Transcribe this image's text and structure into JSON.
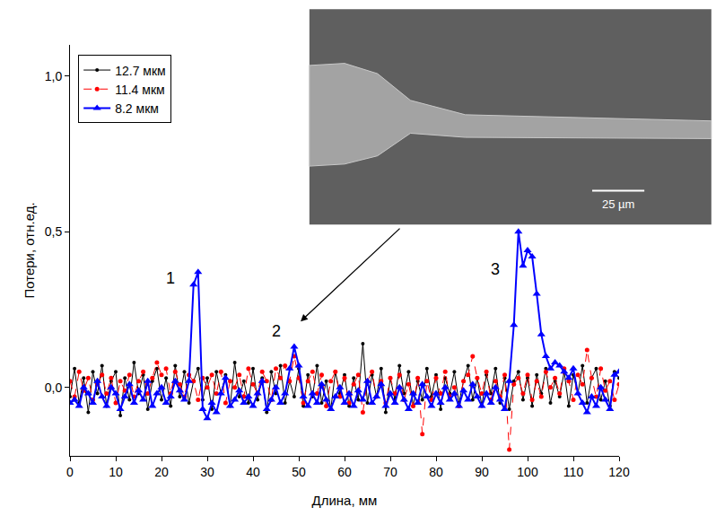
{
  "chart_data": {
    "type": "line",
    "x_label": "Длина, мм",
    "y_label": "Потери, отн.ед.",
    "xlim": [
      0,
      120
    ],
    "xticks": [
      0,
      10,
      20,
      30,
      40,
      50,
      60,
      70,
      80,
      90,
      100,
      110,
      120
    ],
    "ylim": [
      -0.22,
      1.1
    ],
    "yticks": [
      {
        "value": 0,
        "label": "0,0"
      },
      {
        "value": 0.5,
        "label": "0,5"
      },
      {
        "value": 1,
        "label": "1,0"
      }
    ],
    "grid": false,
    "legend": "top-left",
    "x": [
      0,
      1,
      2,
      3,
      4,
      5,
      6,
      7,
      8,
      9,
      10,
      11,
      12,
      13,
      14,
      15,
      16,
      17,
      18,
      19,
      20,
      21,
      22,
      23,
      24,
      25,
      26,
      27,
      28,
      29,
      30,
      31,
      32,
      33,
      34,
      35,
      36,
      37,
      38,
      39,
      40,
      41,
      42,
      43,
      44,
      45,
      46,
      47,
      48,
      49,
      50,
      51,
      52,
      53,
      54,
      55,
      56,
      57,
      58,
      59,
      60,
      61,
      62,
      63,
      64,
      65,
      66,
      67,
      68,
      69,
      70,
      71,
      72,
      73,
      74,
      75,
      76,
      77,
      78,
      79,
      80,
      81,
      82,
      83,
      84,
      85,
      86,
      87,
      88,
      89,
      90,
      91,
      92,
      93,
      94,
      95,
      96,
      97,
      98,
      99,
      100,
      101,
      102,
      103,
      104,
      105,
      106,
      107,
      108,
      109,
      110,
      111,
      112,
      113,
      114,
      115,
      116,
      117,
      118,
      119,
      120
    ],
    "series": [
      {
        "name": "12.7 мкм",
        "color": "#000000",
        "marker": "circle",
        "line_style": "solid",
        "values": [
          -0.03,
          0.06,
          -0.05,
          0.03,
          -0.08,
          0.05,
          -0.02,
          0.07,
          -0.06,
          0.02,
          0.05,
          -0.09,
          0.03,
          -0.04,
          0.08,
          -0.02,
          0.04,
          -0.07,
          0.02,
          0.06,
          -0.04,
          0.03,
          -0.06,
          0.07,
          -0.03,
          0.05,
          -0.05,
          0.02,
          0.06,
          -0.04,
          0.03,
          -0.07,
          0.05,
          -0.02,
          0.04,
          -0.06,
          0.08,
          -0.03,
          0.02,
          -0.05,
          0.06,
          -0.04,
          0.03,
          -0.08,
          0.05,
          -0.02,
          0.07,
          -0.05,
          0.02,
          -0.03,
          0.06,
          -0.06,
          0.04,
          -0.03,
          0.07,
          -0.05,
          0.02,
          -0.07,
          0.05,
          -0.02,
          0.04,
          -0.06,
          0.03,
          -0.04,
          0.14,
          -0.05,
          0.04,
          -0.03,
          0.06,
          -0.08,
          0.03,
          -0.04,
          0.07,
          -0.02,
          0.05,
          -0.06,
          0.02,
          -0.04,
          0.06,
          -0.03,
          0.04,
          -0.07,
          0.03,
          -0.02,
          0.05,
          -0.05,
          0.02,
          0.07,
          -0.04,
          0.03,
          -0.06,
          0.04,
          -0.02,
          0.06,
          -0.05,
          0.03,
          -0.07,
          0.02,
          0.05,
          -0.04,
          0.03,
          -0.06,
          0.04,
          -0.02,
          0.06,
          -0.05,
          0.02,
          -0.03,
          0.05,
          -0.06,
          0.04,
          -0.02,
          0.07,
          -0.05,
          0.03,
          0.06,
          -0.04,
          0.02,
          -0.06,
          0.05,
          0.03
        ]
      },
      {
        "name": "11.4 мкм",
        "color": "#ff0000",
        "marker": "circle",
        "line_style": "dash",
        "values": [
          0.02,
          -0.03,
          0.05,
          -0.01,
          0.03,
          -0.04,
          0.01,
          0.04,
          -0.02,
          0.03,
          -0.05,
          0.02,
          -0.01,
          0.04,
          -0.03,
          0.02,
          0.05,
          -0.02,
          0.03,
          0.08,
          0.04,
          0.06,
          -0.02,
          0.05,
          0.01,
          -0.03,
          0.04,
          0.02,
          -0.04,
          0.03,
          0.0,
          0.04,
          -0.02,
          0.05,
          -0.05,
          0.02,
          0.0,
          0.04,
          -0.03,
          0.06,
          0.01,
          -0.02,
          0.05,
          0.02,
          -0.04,
          0.06,
          0.03,
          0.07,
          0.02,
          0.1,
          0.03,
          -0.05,
          0.02,
          0.05,
          -0.02,
          0.04,
          -0.06,
          0.02,
          0.05,
          -0.03,
          0.03,
          -0.05,
          0.01,
          0.04,
          -0.08,
          0.02,
          0.05,
          -0.03,
          0.02,
          -0.05,
          0.03,
          -0.02,
          0.04,
          -0.04,
          0.01,
          -0.06,
          0.03,
          -0.15,
          0.02,
          -0.04,
          0.03,
          -0.02,
          0.05,
          -0.03,
          0.0,
          -0.06,
          0.02,
          0.04,
          0.1,
          0.03,
          -0.02,
          0.05,
          -0.04,
          0.02,
          -0.03,
          0.04,
          -0.2,
          0.01,
          0.03,
          -0.02,
          0.04,
          -0.04,
          0.02,
          -0.03,
          0.05,
          0.0,
          0.03,
          -0.02,
          0.06,
          0.02,
          -0.04,
          0.04,
          0.01,
          0.12,
          0.03,
          -0.03,
          0.06,
          -0.01,
          0.02,
          -0.04,
          0.01
        ]
      },
      {
        "name": "8.2 мкм",
        "color": "#0000ff",
        "marker": "triangle-up",
        "line_style": "solid",
        "values": [
          -0.05,
          -0.04,
          -0.06,
          0.0,
          -0.02,
          -0.05,
          0.02,
          -0.03,
          -0.06,
          0.0,
          -0.02,
          -0.07,
          -0.03,
          0.01,
          -0.05,
          -0.01,
          -0.04,
          0.02,
          -0.06,
          -0.02,
          0.0,
          -0.05,
          -0.03,
          0.02,
          -0.01,
          -0.04,
          0.02,
          0.33,
          0.37,
          -0.07,
          -0.1,
          -0.05,
          -0.08,
          -0.02,
          0.03,
          -0.06,
          -0.04,
          -0.01,
          -0.05,
          -0.03,
          -0.06,
          -0.02,
          0.02,
          -0.07,
          -0.04,
          0.0,
          -0.05,
          -0.02,
          0.06,
          0.13,
          0.07,
          -0.03,
          -0.06,
          -0.02,
          -0.05,
          0.01,
          -0.04,
          -0.07,
          -0.03,
          0.0,
          -0.05,
          -0.02,
          -0.06,
          -0.01,
          -0.04,
          0.02,
          -0.05,
          -0.03,
          0.01,
          -0.06,
          -0.02,
          -0.05,
          0.0,
          -0.04,
          -0.07,
          -0.02,
          -0.05,
          0.01,
          -0.03,
          -0.06,
          -0.02,
          -0.05,
          0.0,
          -0.04,
          -0.02,
          -0.06,
          -0.01,
          -0.04,
          0.01,
          -0.03,
          -0.06,
          -0.02,
          -0.05,
          0.0,
          -0.04,
          -0.07,
          0.02,
          0.2,
          0.5,
          0.39,
          0.44,
          0.42,
          0.3,
          0.17,
          0.1,
          0.06,
          0.08,
          0.07,
          0.05,
          0.03,
          0.06,
          -0.02,
          -0.05,
          -0.08,
          -0.03,
          -0.06,
          0.0,
          -0.04,
          -0.07,
          0.04,
          0.05
        ]
      }
    ],
    "annotations": [
      {
        "text": "1",
        "x": 22,
        "y": 0.35
      },
      {
        "text": "2",
        "x": 45,
        "y": 0.18
      },
      {
        "text": "3",
        "x": 93,
        "y": 0.38
      }
    ],
    "inset": {
      "scale_bar": "25 µm"
    }
  }
}
